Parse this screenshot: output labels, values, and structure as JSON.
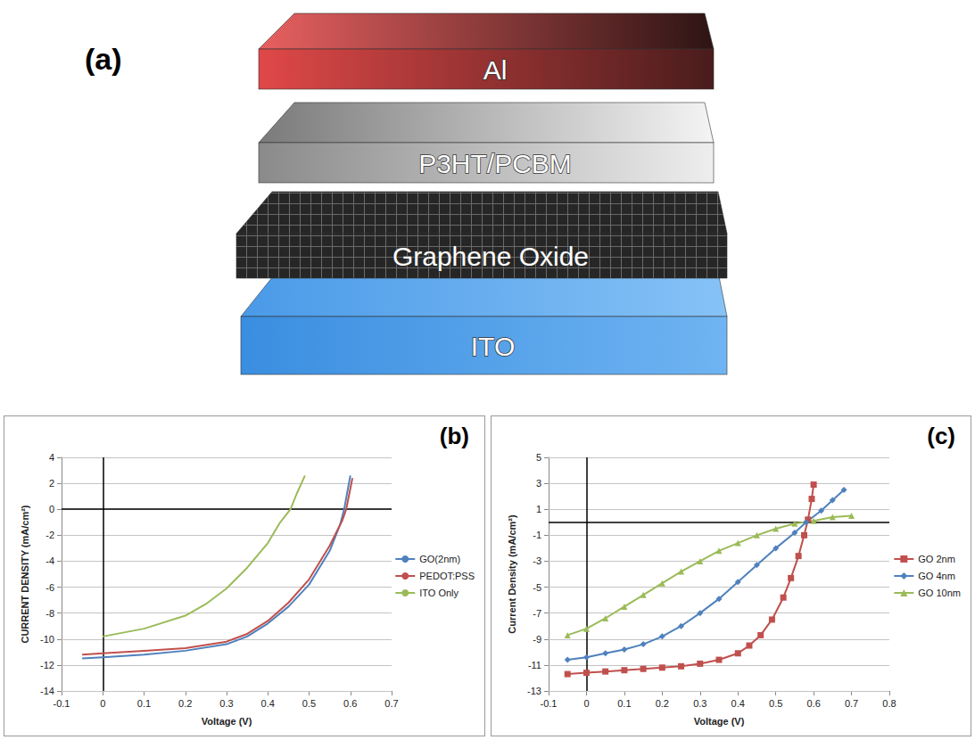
{
  "diagram": {
    "label": "(a)",
    "layers": [
      "Al",
      "P3HT/PCBM",
      "Graphene Oxide",
      "ITO"
    ]
  },
  "chart_data": [
    {
      "type": "line",
      "title": "(b)",
      "x_label": "Voltage (V)",
      "y_label": "CURRENT DENSITY (mA/cm²)",
      "xlim": [
        -0.1,
        0.7
      ],
      "xticks": [
        -0.1,
        0,
        0.1,
        0.2,
        0.3,
        0.4,
        0.5,
        0.6,
        0.7
      ],
      "ylim": [
        -14,
        4
      ],
      "yticks": [
        -14,
        -12,
        -10,
        -8,
        -6,
        -4,
        -2,
        0,
        2,
        4
      ],
      "grid": true,
      "legend": "right",
      "marker": "none",
      "series": [
        {
          "name": "GO(2nm)",
          "color": "#4f81bd",
          "x": [
            -0.05,
            0,
            0.1,
            0.2,
            0.3,
            0.35,
            0.4,
            0.45,
            0.5,
            0.55,
            0.575,
            0.585,
            0.6
          ],
          "values": [
            -11.5,
            -11.4,
            -11.2,
            -10.9,
            -10.4,
            -9.8,
            -8.8,
            -7.5,
            -5.8,
            -3.2,
            -1.2,
            0,
            2.6
          ]
        },
        {
          "name": "PEDOT:PSS",
          "color": "#c0504d",
          "x": [
            -0.05,
            0,
            0.1,
            0.2,
            0.3,
            0.35,
            0.4,
            0.45,
            0.5,
            0.55,
            0.58,
            0.59,
            0.605
          ],
          "values": [
            -11.2,
            -11.1,
            -10.9,
            -10.7,
            -10.2,
            -9.6,
            -8.6,
            -7.2,
            -5.4,
            -2.8,
            -0.9,
            0,
            2.4
          ]
        },
        {
          "name": "ITO Only",
          "color": "#9bbb59",
          "x": [
            0,
            0.1,
            0.2,
            0.25,
            0.3,
            0.35,
            0.4,
            0.43,
            0.455,
            0.47,
            0.49
          ],
          "values": [
            -9.8,
            -9.2,
            -8.2,
            -7.3,
            -6.1,
            -4.5,
            -2.6,
            -1.0,
            0,
            1.2,
            2.6
          ]
        }
      ]
    },
    {
      "type": "line",
      "title": "(c)",
      "x_label": "Voltage (V)",
      "y_label": "Current Density (mA/cm²)",
      "xlim": [
        -0.1,
        0.8
      ],
      "xticks": [
        -0.1,
        0,
        0.1,
        0.2,
        0.3,
        0.4,
        0.5,
        0.6,
        0.7,
        0.8
      ],
      "ylim": [
        -13,
        5
      ],
      "yticks": [
        -13,
        -11,
        -9,
        -7,
        -5,
        -3,
        -1,
        1,
        3,
        5
      ],
      "grid": true,
      "legend": "right",
      "series": [
        {
          "name": "GO 2nm",
          "color": "#c0504d",
          "marker": "square",
          "x": [
            -0.05,
            0,
            0.05,
            0.1,
            0.15,
            0.2,
            0.25,
            0.3,
            0.35,
            0.4,
            0.43,
            0.46,
            0.49,
            0.52,
            0.54,
            0.56,
            0.575,
            0.585,
            0.595,
            0.6
          ],
          "values": [
            -11.7,
            -11.6,
            -11.5,
            -11.4,
            -11.3,
            -11.2,
            -11.1,
            -10.9,
            -10.6,
            -10.1,
            -9.5,
            -8.7,
            -7.5,
            -5.8,
            -4.3,
            -2.6,
            -1.0,
            0.2,
            1.8,
            2.9
          ]
        },
        {
          "name": "GO 4nm",
          "color": "#4f81bd",
          "marker": "diamond",
          "x": [
            -0.05,
            0,
            0.05,
            0.1,
            0.15,
            0.2,
            0.25,
            0.3,
            0.35,
            0.4,
            0.45,
            0.5,
            0.55,
            0.58,
            0.62,
            0.65,
            0.68
          ],
          "values": [
            -10.6,
            -10.4,
            -10.1,
            -9.8,
            -9.4,
            -8.8,
            -8.0,
            -7.0,
            -5.9,
            -4.6,
            -3.3,
            -2.0,
            -0.8,
            0,
            0.9,
            1.7,
            2.5
          ]
        },
        {
          "name": "GO 10nm",
          "color": "#9bbb59",
          "marker": "triangle",
          "x": [
            -0.05,
            0,
            0.05,
            0.1,
            0.15,
            0.2,
            0.25,
            0.3,
            0.35,
            0.4,
            0.45,
            0.5,
            0.55,
            0.6,
            0.65,
            0.7
          ],
          "values": [
            -8.7,
            -8.2,
            -7.4,
            -6.5,
            -5.6,
            -4.7,
            -3.8,
            -3.0,
            -2.2,
            -1.6,
            -1.0,
            -0.5,
            -0.1,
            0.1,
            0.4,
            0.5
          ]
        }
      ]
    }
  ]
}
